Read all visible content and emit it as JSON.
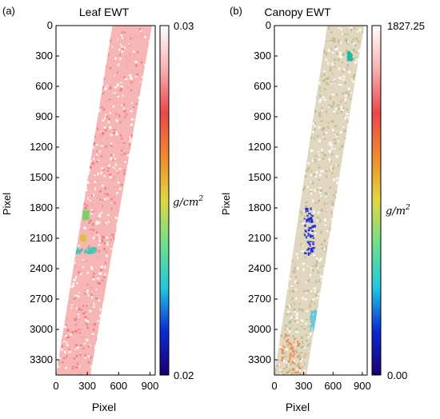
{
  "chart_data": [
    {
      "type": "heatmap",
      "panel_label": "(a)",
      "title": "Leaf EWT",
      "xlabel": "Pixel",
      "ylabel": "Pixel",
      "x_ticks": [
        0,
        300,
        600,
        900
      ],
      "y_ticks": [
        0,
        300,
        600,
        900,
        1200,
        1500,
        1800,
        2100,
        2400,
        2700,
        3000,
        3300
      ],
      "xlim": [
        0,
        950
      ],
      "ylim": [
        3450,
        0
      ],
      "colorbar": {
        "min": 0.02,
        "max": 0.03,
        "min_label": "0.02",
        "max_label": "0.03",
        "unit_base": "g/cm",
        "unit_exp": "2",
        "colormap": [
          "#1a006b",
          "#0a2ad4",
          "#22c8e0",
          "#6ee08a",
          "#e0d840",
          "#f08a30",
          "#ea4848",
          "#f8b0b0",
          "#ffffff"
        ]
      },
      "swath": {
        "top_left": [
          540,
          0
        ],
        "top_right": [
          920,
          0
        ],
        "bottom_right": [
          330,
          3450
        ],
        "bottom_left": [
          0,
          3450
        ]
      },
      "dominant_color": "#f07a7a",
      "anomalies": [
        {
          "x": 250,
          "y": 1820,
          "w": 50,
          "h": 80,
          "color": "#7ad06a"
        },
        {
          "x": 180,
          "y": 2180,
          "w": 200,
          "h": 60,
          "color": "#40c8b0"
        },
        {
          "x": 230,
          "y": 2060,
          "w": 40,
          "h": 60,
          "color": "#e0c040"
        }
      ]
    },
    {
      "type": "heatmap",
      "panel_label": "(b)",
      "title": "Canopy EWT",
      "xlabel": "Pixel",
      "ylabel": "Pixel",
      "x_ticks": [
        0,
        300,
        600,
        900
      ],
      "y_ticks": [
        0,
        300,
        600,
        900,
        1200,
        1500,
        1800,
        2100,
        2400,
        2700,
        3000,
        3300
      ],
      "xlim": [
        0,
        950
      ],
      "ylim": [
        3450,
        0
      ],
      "colorbar": {
        "min": 0.0,
        "max": 1827.25,
        "min_label": "0.00",
        "max_label": "1827.25",
        "unit_base": "g/m",
        "unit_exp": "2",
        "colormap": [
          "#1a006b",
          "#0a2ad4",
          "#22c8e0",
          "#6ee08a",
          "#e0d840",
          "#f08a30",
          "#ea4848",
          "#f8b0b0",
          "#ffffff"
        ]
      },
      "swath": {
        "top_left": [
          540,
          0
        ],
        "top_right": [
          920,
          0
        ],
        "bottom_right": [
          330,
          3450
        ],
        "bottom_left": [
          0,
          3450
        ]
      },
      "dominant_color": "#c8b48a",
      "anomalies": [
        {
          "x": 300,
          "y": 1780,
          "w": 100,
          "h": 500,
          "color": "#1a2ad0"
        },
        {
          "x": 740,
          "y": 250,
          "w": 40,
          "h": 80,
          "color": "#20b8a0"
        },
        {
          "x": 60,
          "y": 3050,
          "w": 200,
          "h": 400,
          "color": "#e89050"
        },
        {
          "x": 360,
          "y": 2800,
          "w": 60,
          "h": 200,
          "color": "#60c8d8"
        }
      ]
    }
  ]
}
